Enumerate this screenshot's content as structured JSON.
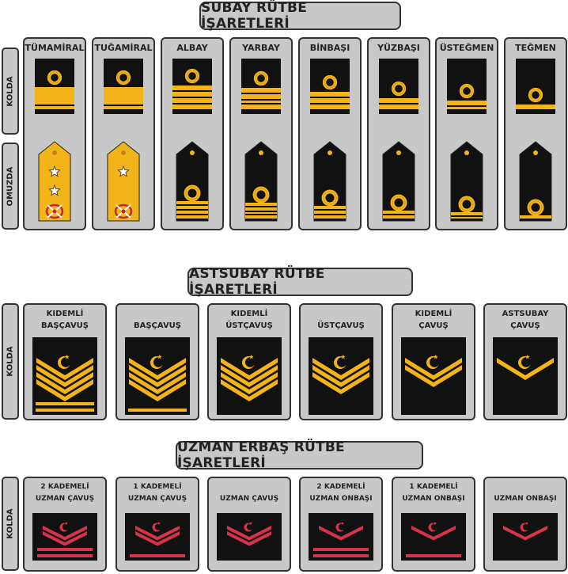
{
  "sections": {
    "officer_title": "SUBAY RÜTBE İŞARETLERİ",
    "nco_title": "ASTSUBAY RÜTBE İŞARETLERİ",
    "specialist_title": "UZMAN ERBAŞ RÜTBE İŞARETLERİ"
  },
  "side_labels": {
    "sleeve": "KOLDA",
    "shoulder": "OMUZDA"
  },
  "officers": [
    {
      "rank": "TÜMAMİRAL",
      "type": "admiral",
      "stars": 2
    },
    {
      "rank": "TUĞAMİRAL",
      "type": "admiral",
      "stars": 1
    },
    {
      "rank": "ALBAY",
      "type": "officer",
      "stripes": [
        "full",
        "full",
        "full",
        "full"
      ]
    },
    {
      "rank": "YARBAY",
      "type": "officer",
      "stripes": [
        "full",
        "full",
        "thin",
        "full"
      ]
    },
    {
      "rank": "BİNBAŞI",
      "type": "officer",
      "stripes": [
        "full",
        "full",
        "full"
      ]
    },
    {
      "rank": "YÜZBAŞI",
      "type": "officer",
      "stripes": [
        "full",
        "full"
      ]
    },
    {
      "rank": "ÜSTEĞMEN",
      "type": "officer",
      "stripes": [
        "full",
        "thin"
      ]
    },
    {
      "rank": "TEĞMEN",
      "type": "officer",
      "stripes": [
        "full"
      ]
    }
  ],
  "ncos": [
    {
      "rank_line1": "KIDEMLİ",
      "rank_line2": "BAŞÇAVUŞ",
      "chevrons": 4,
      "bars": 2
    },
    {
      "rank_line1": "",
      "rank_line2": "BAŞÇAVUŞ",
      "chevrons": 4,
      "bars": 1
    },
    {
      "rank_line1": "KIDEMLİ",
      "rank_line2": "ÜSTÇAVUŞ",
      "chevrons": 4,
      "bars": 0
    },
    {
      "rank_line1": "",
      "rank_line2": "ÜSTÇAVUŞ",
      "chevrons": 3,
      "bars": 0
    },
    {
      "rank_line1": "KIDEMLİ",
      "rank_line2": "ÇAVUŞ",
      "chevrons": 2,
      "bars": 0
    },
    {
      "rank_line1": "ASTSUBAY",
      "rank_line2": "ÇAVUŞ",
      "chevrons": 1,
      "bars": 0
    }
  ],
  "specialists": [
    {
      "rank_line1": "2 KADEMELİ",
      "rank_line2": "UZMAN ÇAVUŞ",
      "chevrons": 2,
      "bars": 2
    },
    {
      "rank_line1": "1 KADEMELİ",
      "rank_line2": "UZMAN ÇAVUŞ",
      "chevrons": 2,
      "bars": 1
    },
    {
      "rank_line1": "",
      "rank_line2": "UZMAN ÇAVUŞ",
      "chevrons": 2,
      "bars": 0
    },
    {
      "rank_line1": "2 KADEMELİ",
      "rank_line2": "UZMAN ONBAŞI",
      "chevrons": 1,
      "bars": 2
    },
    {
      "rank_line1": "1 KADEMELİ",
      "rank_line2": "UZMAN ONBAŞI",
      "chevrons": 1,
      "bars": 1
    },
    {
      "rank_line1": "",
      "rank_line2": "UZMAN ONBAŞI",
      "chevrons": 1,
      "bars": 0
    }
  ],
  "colors": {
    "gold": "#f2b418",
    "gold_dark": "#b8860b",
    "black": "#111111",
    "red": "#d8334a",
    "panel": "#c8c8c8"
  },
  "icons": [
    "star-icon",
    "crescent-star-icon",
    "crossed-swords-wreath-icon",
    "navy-curl-icon"
  ]
}
